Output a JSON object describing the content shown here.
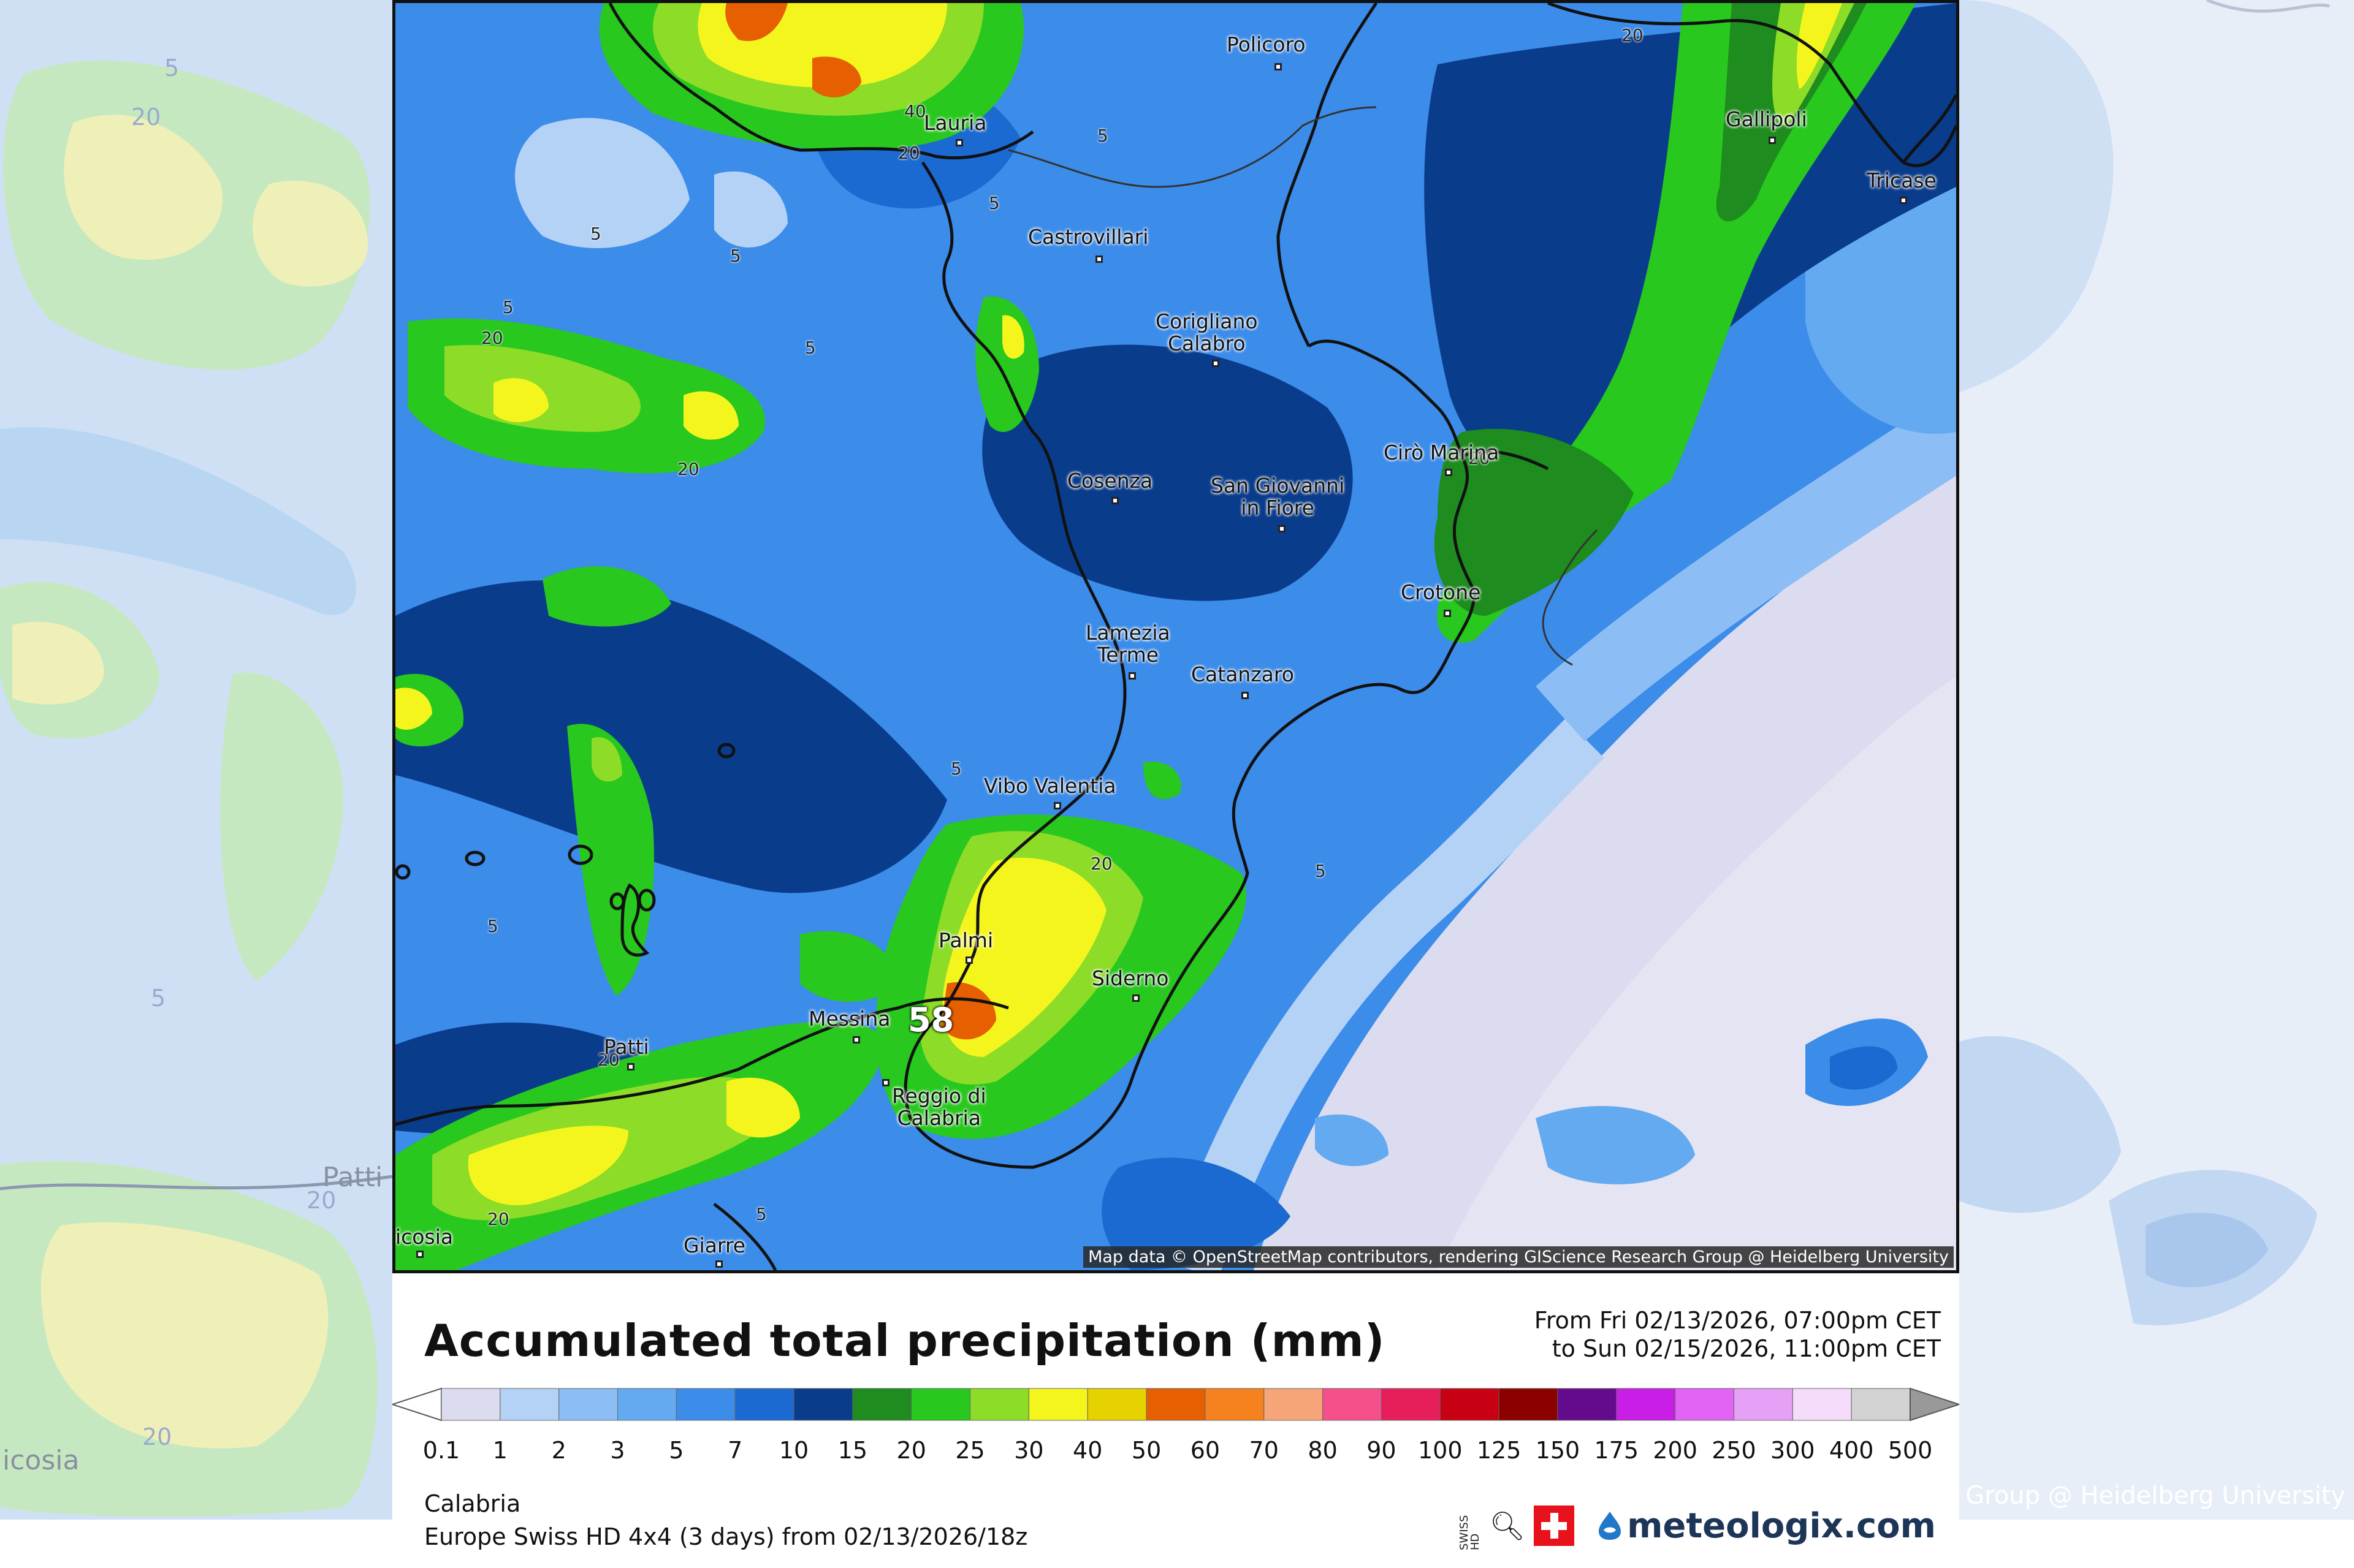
{
  "map": {
    "attribution": "Map data © OpenStreetMap contributors, rendering GIScience Research Group @ Heidelberg University",
    "max_value_label": "58",
    "contour_labels": [
      "5",
      "5",
      "5",
      "5",
      "5",
      "5",
      "5",
      "5",
      "5",
      "5",
      "20",
      "20",
      "20",
      "20",
      "20",
      "20",
      "20",
      "20",
      "40"
    ],
    "cities": [
      {
        "name": "Policoro"
      },
      {
        "name": "Lauria"
      },
      {
        "name": "Gallipoli"
      },
      {
        "name": "Tricase"
      },
      {
        "name": "Castrovillari"
      },
      {
        "name": "Corigliano\nCalabro"
      },
      {
        "name": "Cirò Marina"
      },
      {
        "name": "Cosenza"
      },
      {
        "name": "San Giovanni\nin Fiore"
      },
      {
        "name": "Crotone"
      },
      {
        "name": "Lamezia\nTerme"
      },
      {
        "name": "Catanzaro"
      },
      {
        "name": "Vibo Valentia"
      },
      {
        "name": "Palmi"
      },
      {
        "name": "Siderno"
      },
      {
        "name": "Messina"
      },
      {
        "name": "Reggio di\nCalabria"
      },
      {
        "name": "Patti"
      },
      {
        "name": "Giarre"
      },
      {
        "name": "icosia"
      }
    ],
    "background_labels": {
      "patti": "Patti",
      "icosia": "icosia",
      "credit": "Group @ Heidelberg University",
      "c5a": "5",
      "c20a": "20",
      "c5b": "5",
      "c20b": "20",
      "c20c": "20"
    }
  },
  "legend": {
    "title": "Accumulated total precipitation (mm)",
    "period_line1": "From Fri 02/13/2026, 07:00pm CET",
    "period_line2": "to Sun 02/15/2026, 11:00pm CET",
    "ticks": [
      "0.1",
      "1",
      "2",
      "3",
      "5",
      "7",
      "10",
      "15",
      "20",
      "25",
      "30",
      "40",
      "50",
      "60",
      "70",
      "80",
      "90",
      "100",
      "125",
      "150",
      "175",
      "200",
      "250",
      "300",
      "400",
      "500"
    ],
    "colors": [
      "#dcdcf0",
      "#b4d2f5",
      "#8cbef5",
      "#64aaf0",
      "#3c8cea",
      "#1a6ad2",
      "#0a3c8c",
      "#1e8c1e",
      "#28c81e",
      "#8cdc28",
      "#f5f51e",
      "#e6d200",
      "#e65f00",
      "#f5821e",
      "#f5a578",
      "#f5508c",
      "#e61e5a",
      "#c80014",
      "#8c0000",
      "#640a8c",
      "#c81ee6",
      "#e164f5",
      "#e6a0f5",
      "#f5dcfa",
      "#d2d2d2"
    ],
    "region": "Calabria",
    "model_run": "Europe Swiss HD 4x4 (3 days) from  02/13/2026/18z",
    "swiss_hd_label": "SWISS HD",
    "brand": "meteologix.com"
  }
}
